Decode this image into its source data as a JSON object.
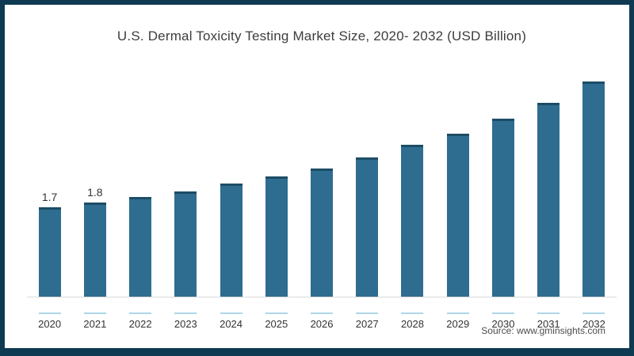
{
  "chart_data": {
    "type": "bar",
    "title": "U.S. Dermal Toxicity Testing Market Size, 2020- 2032 (USD Billion)",
    "categories": [
      "2020",
      "2021",
      "2022",
      "2023",
      "2024",
      "2025",
      "2026",
      "2027",
      "2028",
      "2029",
      "2030",
      "2031",
      "2032"
    ],
    "values": [
      1.7,
      1.8,
      1.9,
      2.0,
      2.15,
      2.3,
      2.45,
      2.65,
      2.9,
      3.1,
      3.4,
      3.7,
      4.1
    ],
    "data_labels": [
      "1.7",
      "1.8",
      "",
      "",
      "",
      "",
      "",
      "",
      "",
      "",
      "",
      "",
      ""
    ],
    "xlabel": "",
    "ylabel": "",
    "unit": "USD Billion",
    "ylim": [
      0,
      4.5
    ],
    "grid": false,
    "legend": false
  },
  "source": {
    "text": "Source: www.gminsights.com"
  },
  "colors": {
    "bar": "#2e6d90",
    "bar_top": "#1d4d66",
    "frame_border": "#0e3a52",
    "axis_line": "#d9d9d9",
    "tick": "#aed6e8",
    "title_text": "#3d3d3d",
    "label_text": "#333333"
  }
}
